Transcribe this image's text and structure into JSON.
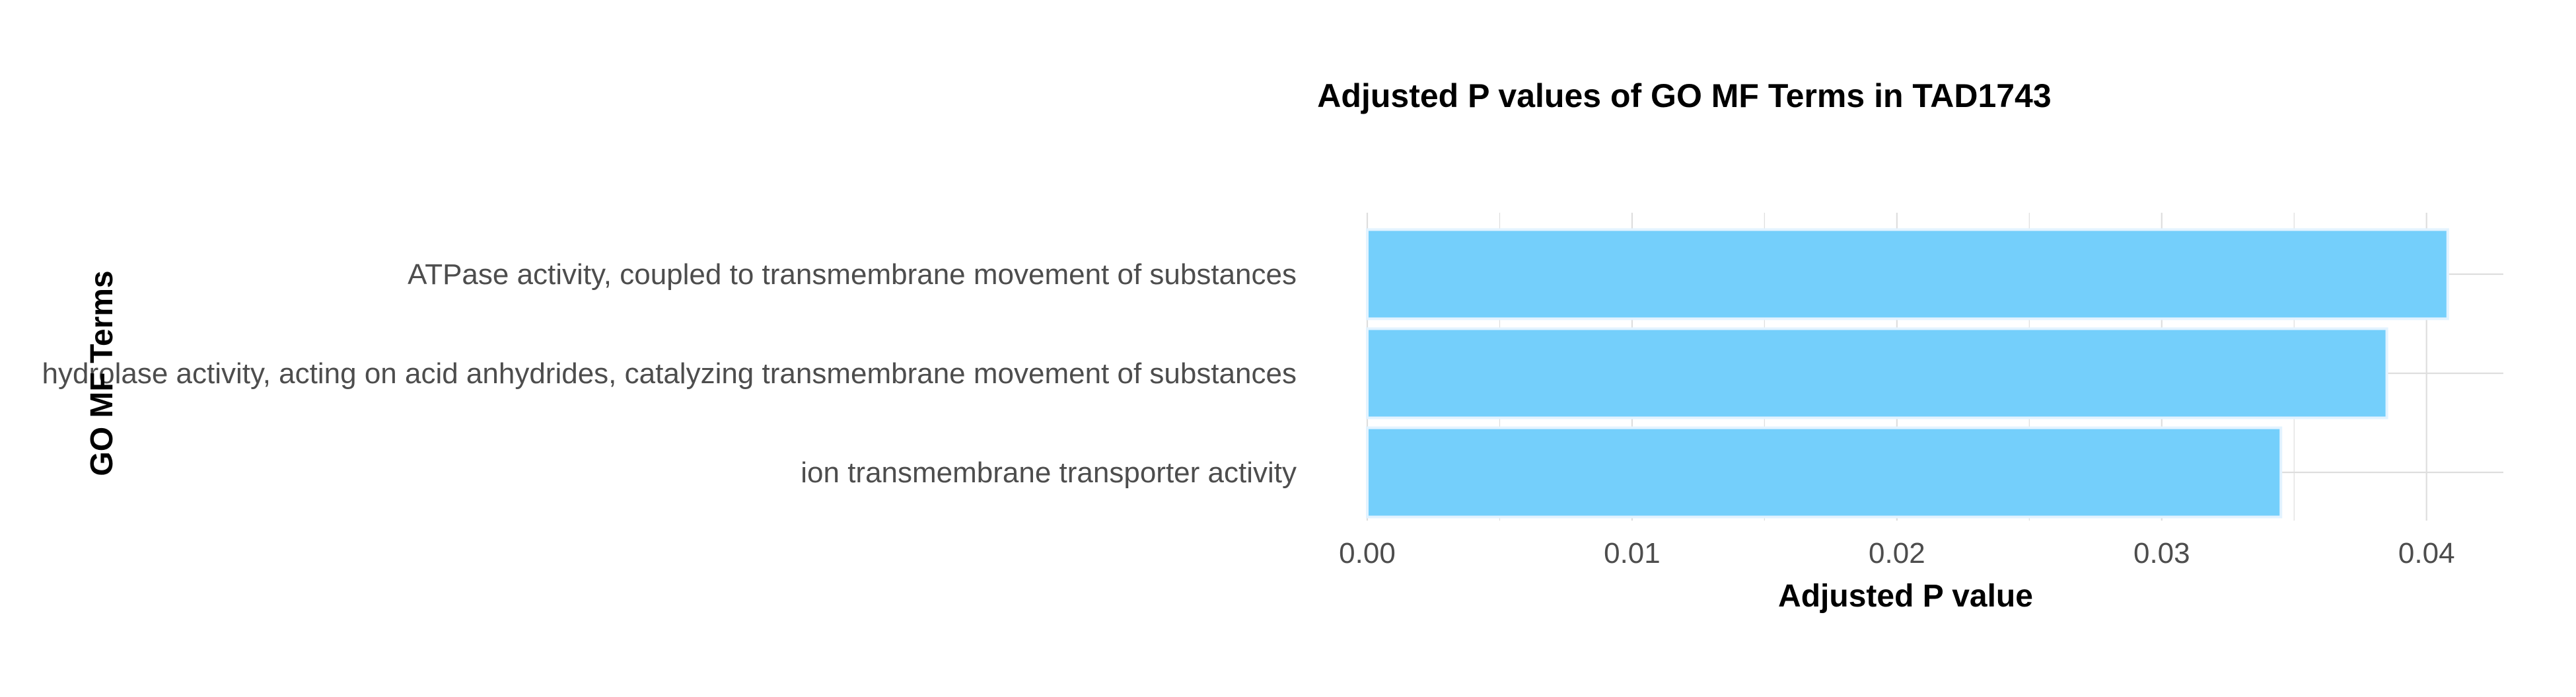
{
  "chart_data": {
    "type": "bar",
    "orientation": "horizontal",
    "title": "Adjusted P values of GO MF Terms in TAD1743",
    "xlabel": "Adjusted P value",
    "ylabel": "GO MF Terms",
    "categories": [
      "ATPase activity, coupled to transmembrane movement of substances",
      "hydrolase activity, acting on acid anhydrides, catalyzing transmembrane movement of substances",
      "ion transmembrane transporter activity"
    ],
    "values": [
      0.0408,
      0.0385,
      0.0345
    ],
    "xlim": [
      0,
      0.0429
    ],
    "xticks": [
      "0.00",
      "0.01",
      "0.02",
      "0.03",
      "0.04"
    ],
    "grid": true,
    "legend": "none",
    "colors": {
      "bar_fill": "#74CFFB",
      "bar_stroke": "#E3F3FF",
      "grid": "#DEDEDE",
      "tick_text": "#4D4D4D",
      "title_text": "#000000"
    }
  }
}
